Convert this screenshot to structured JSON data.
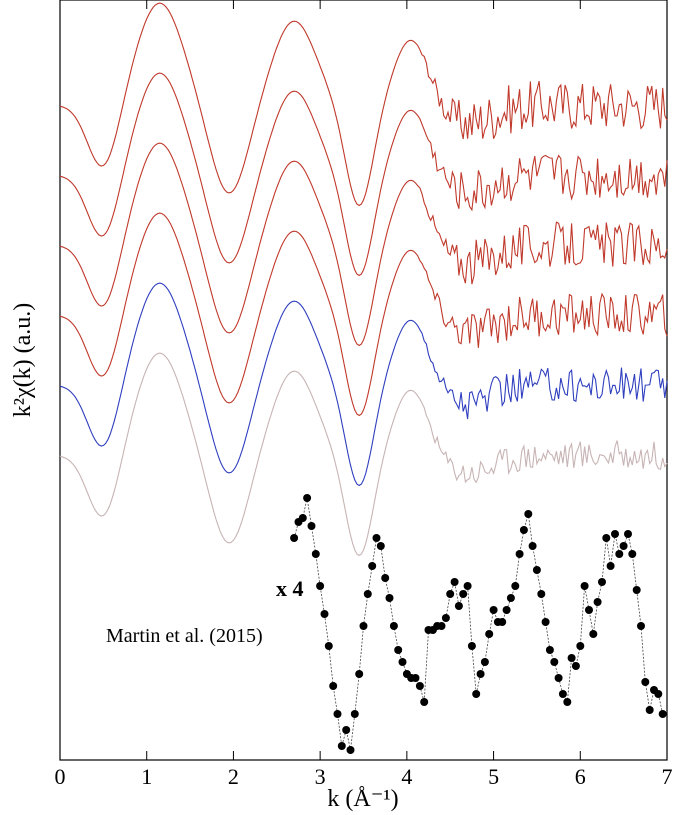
{
  "chart_data": {
    "type": "line",
    "xlabel": "k (Å⁻¹)",
    "ylabel": "k²χ(k) (a.u.)",
    "xlim": [
      0,
      7
    ],
    "xticks": [
      0,
      1,
      2,
      3,
      4,
      5,
      6,
      7
    ],
    "yticks": [],
    "grid": false,
    "legend": "none",
    "annotations": [
      {
        "text": "x 4",
        "bold": true
      },
      {
        "text": "Martin et al. (2015)",
        "bold": false
      }
    ],
    "series": [
      {
        "color": "#c0392b",
        "offset": 5,
        "noise": 0.42
      },
      {
        "color": "#c0392b",
        "offset": 4,
        "noise": 0.4
      },
      {
        "color": "#c0392b",
        "offset": 3,
        "noise": 0.38
      },
      {
        "color": "#c0392b",
        "offset": 2,
        "noise": 0.36
      },
      {
        "color": "#2f3fbf",
        "offset": 1,
        "noise": 0.3
      },
      {
        "color": "#c8b4b4",
        "offset": 0,
        "noise": 0.24
      }
    ],
    "scatter_series": {
      "color": "#000000",
      "scale_factor": 4,
      "x": [
        2.7,
        2.75,
        2.8,
        2.85,
        2.9,
        2.95,
        3.0,
        3.05,
        3.1,
        3.15,
        3.2,
        3.25,
        3.3,
        3.35,
        3.4,
        3.45,
        3.5,
        3.55,
        3.6,
        3.65,
        3.7,
        3.75,
        3.8,
        3.85,
        3.9,
        3.95,
        4.0,
        4.05,
        4.1,
        4.15,
        4.2,
        4.25,
        4.3,
        4.35,
        4.4,
        4.45,
        4.5,
        4.55,
        4.6,
        4.65,
        4.7,
        4.75,
        4.8,
        4.85,
        4.9,
        4.95,
        5.0,
        5.05,
        5.1,
        5.15,
        5.2,
        5.25,
        5.3,
        5.35,
        5.4,
        5.45,
        5.5,
        5.55,
        5.6,
        5.65,
        5.7,
        5.75,
        5.8,
        5.85,
        5.9,
        5.95,
        6.0,
        6.05,
        6.1,
        6.15,
        6.2,
        6.25,
        6.3,
        6.35,
        6.4,
        6.45,
        6.5,
        6.55,
        6.6,
        6.65,
        6.7,
        6.75,
        6.8,
        6.85,
        6.9,
        6.95
      ],
      "y": [
        -2.2,
        -1.8,
        -1.7,
        -1.2,
        -1.9,
        -2.6,
        -3.4,
        -4.1,
        -4.9,
        -5.9,
        -6.6,
        -7.4,
        -7.0,
        -7.5,
        -6.6,
        -5.6,
        -4.4,
        -3.6,
        -2.9,
        -2.2,
        -2.4,
        -3.2,
        -3.7,
        -4.4,
        -5.0,
        -5.3,
        -5.6,
        -5.7,
        -5.7,
        -5.9,
        -6.3,
        -4.5,
        -4.5,
        -4.4,
        -4.4,
        -4.2,
        -3.6,
        -3.3,
        -3.9,
        -3.6,
        -3.4,
        -4.9,
        -6.1,
        -5.6,
        -5.3,
        -4.6,
        -4.0,
        -4.3,
        -4.3,
        -4.0,
        -3.7,
        -3.4,
        -2.6,
        -2.0,
        -1.6,
        -2.4,
        -3.0,
        -3.6,
        -4.3,
        -5.0,
        -5.3,
        -5.7,
        -6.1,
        -6.3,
        -5.2,
        -5.4,
        -4.9,
        -3.4,
        -4.0,
        -4.6,
        -3.8,
        -3.3,
        -2.2,
        -2.9,
        -2.1,
        -2.6,
        -2.4,
        -2.1,
        -2.6,
        -3.5,
        -4.4,
        -5.8,
        -6.5,
        -6.0,
        -6.1,
        -6.6
      ]
    }
  }
}
